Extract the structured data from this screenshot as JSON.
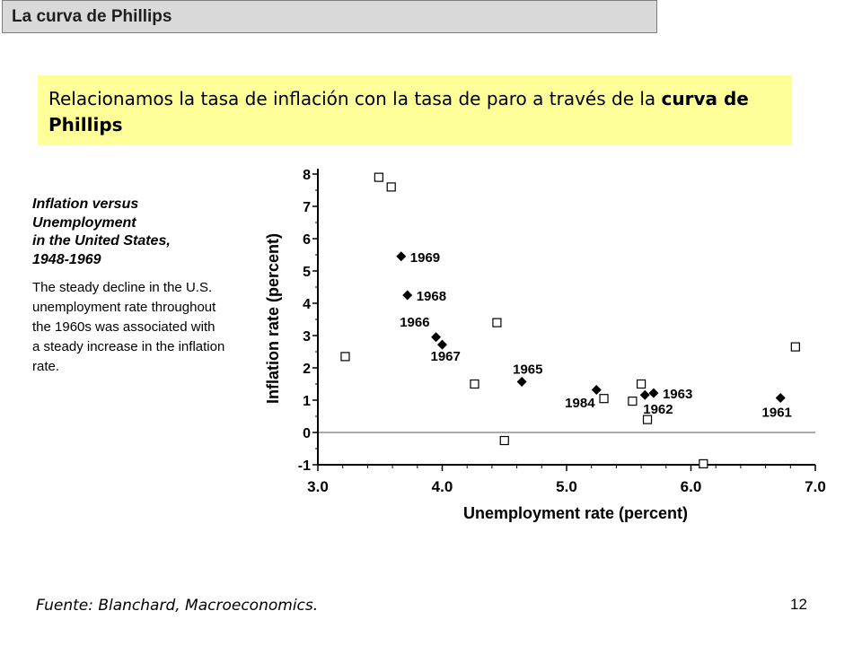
{
  "header": {
    "title": "La curva de Phillips"
  },
  "banner": {
    "text_before": "Relacionamos la tasa de inflación con la tasa de paro a través de la ",
    "text_bold": "curva de Phillips"
  },
  "side_panel": {
    "title_lines": [
      "Inflation versus",
      "Unemployment",
      "in the United States,",
      "1948-1969"
    ],
    "caption": "The steady decline in the U.S. unemployment rate throughout the 1960s was associated with a steady increase in the inflation rate."
  },
  "footer": {
    "source": "Fuente: Blanchard, Macroeconomics.",
    "page_number": "12"
  },
  "chart_data": {
    "type": "scatter",
    "xlabel": "Unemployment rate (percent)",
    "ylabel": "Inflation rate (percent)",
    "xlim": [
      3.0,
      7.0
    ],
    "ylim": [
      -1,
      8
    ],
    "x_ticks": [
      "3.0",
      "4.0",
      "5.0",
      "6.0",
      "7.0"
    ],
    "y_ticks": [
      "-1",
      "0",
      "1",
      "2",
      "3",
      "4",
      "5",
      "6",
      "7",
      "8"
    ],
    "zero_line": true,
    "series": [
      {
        "marker": "diamond-filled",
        "color": "#000000",
        "points": [
          {
            "x": 3.67,
            "y": 5.45,
            "label": "1969"
          },
          {
            "x": 3.72,
            "y": 4.25,
            "label": "1968"
          },
          {
            "x": 3.95,
            "y": 2.95,
            "label": "1966"
          },
          {
            "x": 4.0,
            "y": 2.72,
            "label": "1967"
          },
          {
            "x": 4.64,
            "y": 1.57,
            "label": "1965"
          },
          {
            "x": 5.24,
            "y": 1.32,
            "label": ""
          },
          {
            "x": 5.63,
            "y": 1.16,
            "label": "1962"
          },
          {
            "x": 5.7,
            "y": 1.22,
            "label": "1963"
          },
          {
            "x": 6.72,
            "y": 1.07,
            "label": "1961"
          }
        ]
      },
      {
        "marker": "square-open",
        "color": "#000000",
        "points": [
          {
            "x": 3.49,
            "y": 7.9,
            "label": ""
          },
          {
            "x": 3.59,
            "y": 7.6,
            "label": ""
          },
          {
            "x": 3.22,
            "y": 2.35,
            "label": ""
          },
          {
            "x": 4.26,
            "y": 1.5,
            "label": ""
          },
          {
            "x": 4.44,
            "y": 3.4,
            "label": ""
          },
          {
            "x": 4.5,
            "y": -0.25,
            "label": ""
          },
          {
            "x": 5.3,
            "y": 1.05,
            "label": "1984"
          },
          {
            "x": 5.53,
            "y": 0.97,
            "label": ""
          },
          {
            "x": 5.6,
            "y": 1.5,
            "label": ""
          },
          {
            "x": 5.65,
            "y": 0.4,
            "label": ""
          },
          {
            "x": 6.1,
            "y": -0.97,
            "label": ""
          },
          {
            "x": 6.84,
            "y": 2.65,
            "label": ""
          }
        ]
      }
    ]
  }
}
